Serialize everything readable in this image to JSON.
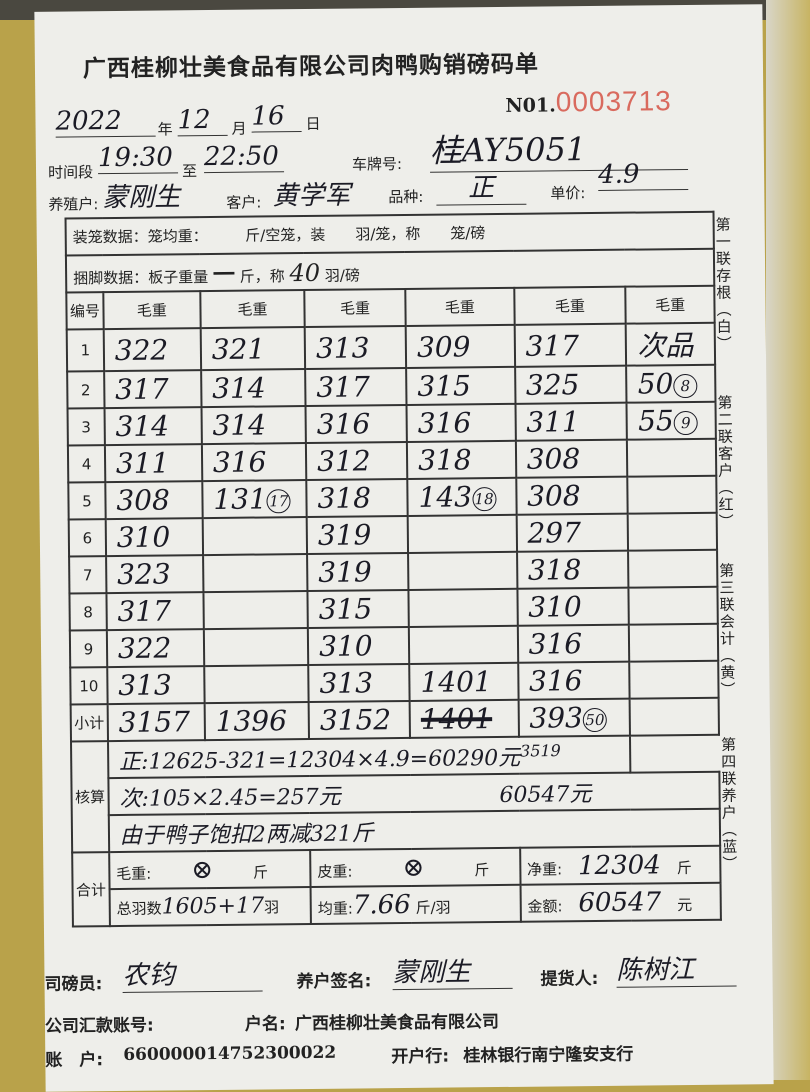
{
  "header": {
    "title": "广西桂柳壮美食品有限公司肉鸭购销磅码单",
    "no_label": "N01.",
    "no_value": "0003713"
  },
  "date": {
    "year": "2022",
    "year_label": "年",
    "month": "12",
    "month_label": "月",
    "day": "16",
    "day_label": "日"
  },
  "time": {
    "label": "时间段",
    "from": "19:30",
    "to_label": "至",
    "to": "22:50"
  },
  "plate": {
    "label": "车牌号:",
    "value": "桂AY5051"
  },
  "farmer": {
    "label": "养殖户:",
    "value": "蒙刚生"
  },
  "customer": {
    "label": "客户:",
    "value": "黄学军"
  },
  "variety": {
    "label": "品种:",
    "value": "正"
  },
  "price": {
    "label": "单价:",
    "value": "4.9"
  },
  "cage_data": "装笼数据：笼均重：　　　斤/空笼，装　　羽/笼，称　　笼/磅",
  "tie_data": {
    "prefix": "捆脚数据：板子重量",
    "board": "一",
    "mid": "斤，称",
    "count": "40",
    "suffix": "羽/磅"
  },
  "table": {
    "headers": [
      "编号",
      "毛重",
      "毛重",
      "毛重",
      "毛重",
      "毛重",
      "毛重"
    ],
    "rows": [
      [
        "1",
        "322",
        "321",
        "313",
        "309",
        "317",
        "次品"
      ],
      [
        "2",
        "317",
        "314",
        "317",
        "315",
        "325",
        "50"
      ],
      [
        "3",
        "314",
        "314",
        "316",
        "316",
        "311",
        "55"
      ],
      [
        "4",
        "311",
        "316",
        "312",
        "318",
        "308",
        ""
      ],
      [
        "5",
        "308",
        "131",
        "318",
        "143",
        "308",
        ""
      ],
      [
        "6",
        "310",
        "",
        "319",
        "",
        "297",
        ""
      ],
      [
        "7",
        "323",
        "",
        "319",
        "",
        "318",
        ""
      ],
      [
        "8",
        "317",
        "",
        "315",
        "",
        "310",
        ""
      ],
      [
        "9",
        "322",
        "",
        "310",
        "",
        "316",
        ""
      ],
      [
        "10",
        "313",
        "",
        "313",
        "1401",
        "316",
        ""
      ]
    ],
    "circled": {
      "r2c6": "8",
      "r3c6": "9",
      "r5c2": "17",
      "r5c4": "18"
    },
    "subtotal": {
      "label": "小计",
      "values": [
        "3157",
        "1396",
        "3152",
        "1401",
        "393"
      ],
      "circled": "50"
    }
  },
  "calc": {
    "label": "核算",
    "line1": "正:12625-321=12304×4.9=60290元",
    "line1_note": "3519",
    "line2": "次:105×2.45=257元",
    "line2_note": "60547元",
    "line3": "由于鸭子饱扣2两减321斤"
  },
  "total": {
    "label": "合计",
    "gross_label": "毛重:",
    "gross_value": "⊗",
    "tare_label": "皮重:",
    "tare_value": "⊗",
    "jin": "斤",
    "net_label": "净重:",
    "net_value": "12304",
    "count_label": "总羽数",
    "count_value": "1605+17",
    "count_unit": "羽",
    "avg_label": "均重:",
    "avg_value": "7.66",
    "avg_unit": "斤/羽",
    "amount_label": "金额:",
    "amount_value": "60547",
    "amount_unit": "元"
  },
  "side": [
    "第一联存根（白）",
    "第二联客户（红）",
    "第三联会计（黄）",
    "第四联养户（蓝）"
  ],
  "signatures": {
    "weigher_label": "司磅员:",
    "weigher": "农钧",
    "farmer_label": "养户签名:",
    "farmer": "蒙刚生",
    "picker_label": "提货人:",
    "picker": "陈树江"
  },
  "account": {
    "label": "公司汇款账号:",
    "name_label": "户名:",
    "name": "广西桂柳壮美食品有限公司",
    "acct_label": "账　户:",
    "acct": "660000014752300022",
    "bank_label": "开户行:",
    "bank": "桂林银行南宁隆安支行"
  }
}
